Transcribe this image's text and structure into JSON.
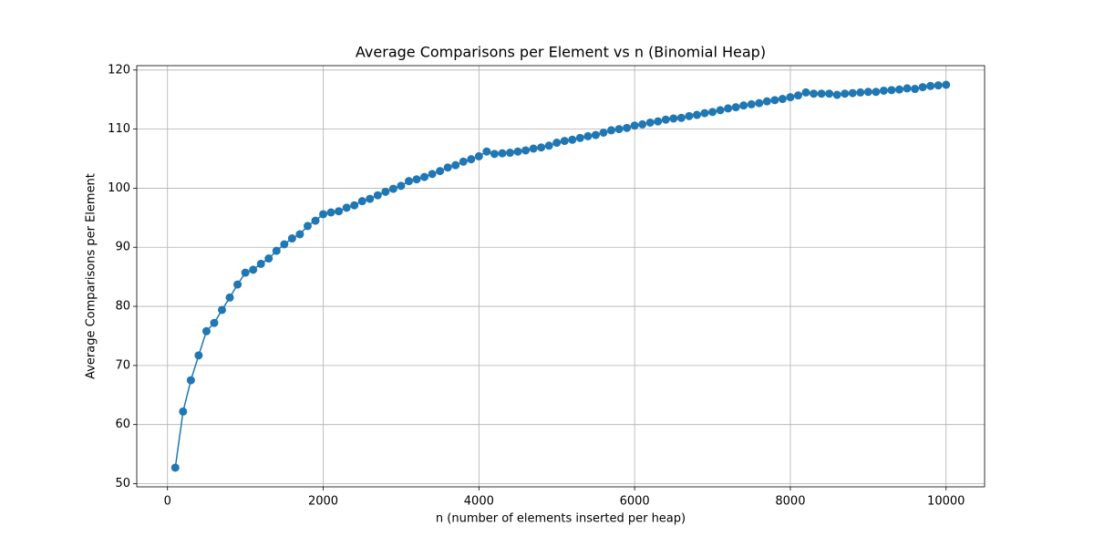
{
  "chart_data": {
    "type": "line",
    "title": "Average Comparisons per Element vs n (Binomial Heap)",
    "x_label": "n (number of elements inserted per heap)",
    "y_label": "Average Comparisons per Element",
    "x": [
      100,
      200,
      300,
      400,
      500,
      600,
      700,
      800,
      900,
      1000,
      1100,
      1200,
      1300,
      1400,
      1500,
      1600,
      1700,
      1800,
      1900,
      2000,
      2100,
      2200,
      2300,
      2400,
      2500,
      2600,
      2700,
      2800,
      2900,
      3000,
      3100,
      3200,
      3300,
      3400,
      3500,
      3600,
      3700,
      3800,
      3900,
      4000,
      4100,
      4200,
      4300,
      4400,
      4500,
      4600,
      4700,
      4800,
      4900,
      5000,
      5100,
      5200,
      5300,
      5400,
      5500,
      5600,
      5700,
      5800,
      5900,
      6000,
      6100,
      6200,
      6300,
      6400,
      6500,
      6600,
      6700,
      6800,
      6900,
      7000,
      7100,
      7200,
      7300,
      7400,
      7500,
      7600,
      7700,
      7800,
      7900,
      8000,
      8100,
      8200,
      8300,
      8400,
      8500,
      8600,
      8700,
      8800,
      8900,
      9000,
      9100,
      9200,
      9300,
      9400,
      9500,
      9600,
      9700,
      9800,
      9900,
      10000
    ],
    "series": [
      {
        "color": "#1f77b4",
        "values": [
          52.7,
          62.2,
          67.5,
          71.7,
          75.8,
          77.2,
          79.4,
          81.5,
          83.7,
          85.7,
          86.2,
          87.2,
          88.1,
          89.4,
          90.5,
          91.5,
          92.2,
          93.6,
          94.5,
          95.6,
          95.9,
          96.1,
          96.7,
          97.1,
          97.8,
          98.2,
          98.8,
          99.4,
          99.9,
          100.4,
          101.2,
          101.5,
          101.9,
          102.4,
          102.9,
          103.5,
          103.9,
          104.5,
          104.9,
          105.4,
          106.2,
          105.8,
          105.9,
          106.0,
          106.2,
          106.4,
          106.7,
          106.9,
          107.2,
          107.7,
          108.0,
          108.2,
          108.5,
          108.8,
          109.0,
          109.4,
          109.8,
          110.0,
          110.2,
          110.6,
          110.8,
          111.1,
          111.3,
          111.6,
          111.8,
          111.9,
          112.2,
          112.4,
          112.7,
          112.9,
          113.2,
          113.5,
          113.7,
          114.0,
          114.2,
          114.4,
          114.7,
          114.9,
          115.1,
          115.4,
          115.7,
          116.2,
          116.0,
          116.0,
          116.0,
          115.8,
          116.0,
          116.1,
          116.2,
          116.3,
          116.3,
          116.5,
          116.6,
          116.7,
          116.9,
          116.8,
          117.1,
          117.3,
          117.4,
          117.5
        ]
      }
    ],
    "xlim": [
      -395,
      10495
    ],
    "ylim": [
      49.46,
      120.74
    ],
    "xticks": [
      0,
      2000,
      4000,
      6000,
      8000,
      10000
    ],
    "yticks": [
      50,
      60,
      70,
      80,
      90,
      100,
      110,
      120
    ],
    "grid": true,
    "markers": true
  }
}
